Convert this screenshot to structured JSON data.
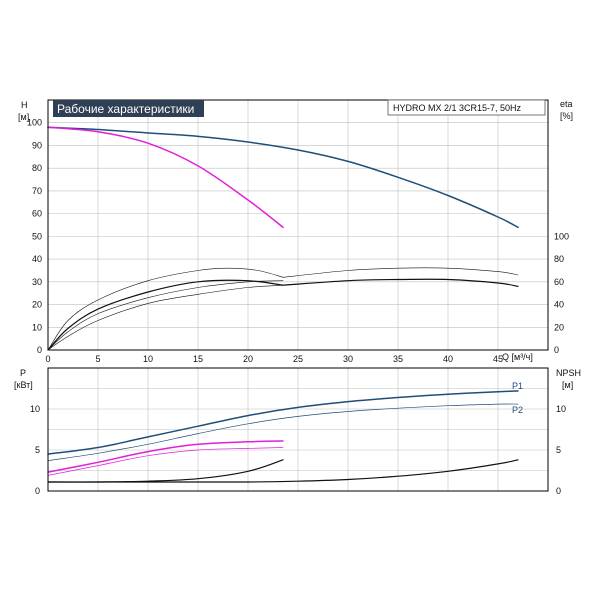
{
  "header": {
    "title": "Рабочие характеристики",
    "model": "HYDRO MX 2/1 3CR15-7, 50Hz"
  },
  "colors": {
    "blue": "#1f4e79",
    "magenta": "#e020d8",
    "black": "#111111",
    "grid": "#bfbfbf",
    "title_bg": "#2f3f55"
  },
  "chart_data": [
    {
      "type": "line",
      "name": "head-efficiency",
      "xlabel": "Q [м³/ч]",
      "ylabel": "H [м]",
      "ylabel_right": "eta [%]",
      "xlim": [
        0,
        50
      ],
      "ylim": [
        0,
        110
      ],
      "xticks": [
        0,
        5,
        10,
        15,
        20,
        25,
        30,
        35,
        40,
        45
      ],
      "yticks": [
        0,
        10,
        20,
        30,
        40,
        50,
        60,
        70,
        80,
        90,
        100
      ],
      "yticks_right": [
        0,
        20,
        40,
        60,
        80,
        100
      ],
      "right_axis_factor": 2,
      "grid": true,
      "series": [
        {
          "color": "blue",
          "width": 1.5,
          "x": [
            0,
            5,
            10,
            15,
            20,
            25,
            30,
            35,
            40,
            45,
            47
          ],
          "y": [
            98,
            97,
            95.5,
            94,
            91.5,
            88,
            83,
            76,
            68,
            58.5,
            54
          ]
        },
        {
          "color": "magenta",
          "width": 1.5,
          "x": [
            0,
            5,
            10,
            15,
            20,
            23.5
          ],
          "y": [
            98,
            96,
            91,
            81,
            66,
            54
          ]
        },
        {
          "color": "black",
          "width": 1.2,
          "x": [
            0,
            2,
            5,
            10,
            15,
            20,
            23.5
          ],
          "y": [
            0,
            9.5,
            18,
            25.5,
            30,
            30.5,
            28.5
          ]
        },
        {
          "color": "black",
          "width": 0.6,
          "x": [
            0,
            2,
            5,
            10,
            15,
            18,
            21,
            23.5
          ],
          "y": [
            0,
            13,
            22,
            30.5,
            35,
            36,
            35,
            32
          ]
        },
        {
          "color": "black",
          "width": 0.6,
          "x": [
            0,
            2,
            5,
            10,
            15,
            20,
            23.5
          ],
          "y": [
            0,
            8,
            16,
            23,
            27.5,
            30,
            30.5
          ]
        },
        {
          "color": "black",
          "width": 0.6,
          "x": [
            0,
            2,
            5,
            10,
            15,
            20,
            23.5
          ],
          "y": [
            0,
            6,
            13,
            20.5,
            24.5,
            27.5,
            28.5
          ]
        },
        {
          "color": "black",
          "width": 1.2,
          "x": [
            23.5,
            30,
            35,
            40,
            45,
            47
          ],
          "y": [
            28.5,
            30.5,
            31,
            31,
            29.5,
            28
          ]
        },
        {
          "color": "black",
          "width": 0.6,
          "x": [
            23.5,
            30,
            35,
            40,
            45,
            47
          ],
          "y": [
            32,
            35,
            36,
            36,
            34.5,
            33
          ]
        }
      ]
    },
    {
      "type": "line",
      "name": "power-npsh",
      "ylabel": "P [кВт]",
      "ylabel_right": "NPSH [м]",
      "xlim": [
        0,
        50
      ],
      "ylim": [
        0,
        15
      ],
      "yticks": [
        0,
        5,
        10
      ],
      "yticks_right": [
        0,
        5,
        10
      ],
      "grid": true,
      "series": [
        {
          "name": "P1",
          "color": "blue",
          "width": 1.5,
          "x": [
            0,
            5,
            10,
            15,
            20,
            25,
            30,
            35,
            40,
            45,
            47
          ],
          "y": [
            4.5,
            5.3,
            6.6,
            7.9,
            9.2,
            10.2,
            10.9,
            11.4,
            11.8,
            12.1,
            12.2
          ]
        },
        {
          "name": "P2",
          "color": "blue",
          "width": 0.7,
          "x": [
            0,
            5,
            10,
            15,
            20,
            25,
            30,
            35,
            40,
            45,
            47
          ],
          "y": [
            3.7,
            4.6,
            5.7,
            7.0,
            8.2,
            9.1,
            9.7,
            10.1,
            10.4,
            10.6,
            10.6
          ]
        },
        {
          "color": "magenta",
          "width": 1.5,
          "x": [
            0,
            5,
            10,
            15,
            20,
            23.5
          ],
          "y": [
            2.3,
            3.5,
            4.8,
            5.7,
            6.0,
            6.1
          ]
        },
        {
          "color": "magenta",
          "width": 0.7,
          "x": [
            0,
            5,
            10,
            15,
            20,
            23.5
          ],
          "y": [
            1.9,
            3.1,
            4.3,
            5.0,
            5.2,
            5.3
          ]
        },
        {
          "color": "black",
          "width": 1.2,
          "x": [
            0,
            5,
            10,
            15,
            20,
            23.5
          ],
          "y": [
            1.1,
            1.1,
            1.2,
            1.5,
            2.4,
            3.8
          ]
        },
        {
          "color": "black",
          "width": 1.2,
          "x": [
            0,
            10,
            20,
            25,
            30,
            35,
            40,
            45,
            47
          ],
          "y": [
            1.1,
            1.1,
            1.1,
            1.2,
            1.4,
            1.8,
            2.4,
            3.3,
            3.8
          ]
        }
      ]
    }
  ]
}
